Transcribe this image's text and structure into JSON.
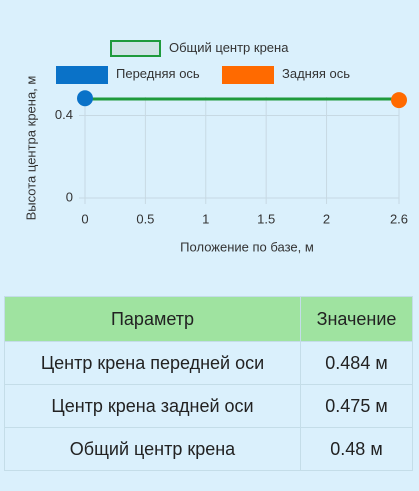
{
  "chart_data": {
    "type": "line",
    "x_label": "Положение по базе, м",
    "y_label": "Высота центра крена, м",
    "series": [
      {
        "name": "Общий центр крена",
        "color": "#1e9a3c",
        "x": [
          0,
          2.6
        ],
        "values": [
          0.48,
          0.48
        ]
      },
      {
        "name": "Передняя ось",
        "color": "#0a72c8",
        "x": [
          0
        ],
        "values": [
          0.484
        ]
      },
      {
        "name": "Задняя ось",
        "color": "#ff6a00",
        "x": [
          2.6
        ],
        "values": [
          0.475
        ]
      }
    ],
    "xlim": [
      0,
      2.6
    ],
    "xticks": [
      0,
      0.5,
      1,
      1.5,
      2,
      2.6
    ],
    "ylim": [
      0,
      0.49
    ],
    "yticks": [
      0,
      0.4
    ],
    "grid": true
  },
  "table": {
    "header": [
      "Параметр",
      "Значение"
    ],
    "rows": [
      [
        "Центр крена передней оси",
        "0.484 м"
      ],
      [
        "Центр крена задней оси",
        "0.475 м"
      ],
      [
        "Общий центр крена",
        "0.48 м"
      ]
    ]
  }
}
